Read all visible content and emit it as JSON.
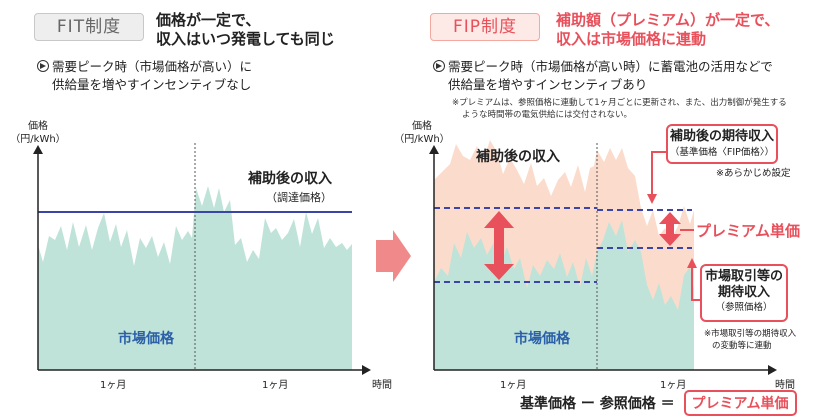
{
  "fit": {
    "tag": "FIT制度",
    "headline_1": "価格が一定で、",
    "headline_2": "収入はいつ発電しても同じ",
    "bullet_1": "需要ピーク時（市場価格が高い）に",
    "bullet_2": "供給量を増やすインセンティブなし",
    "y_axis_1": "価格",
    "y_axis_2": "（円/kWh）",
    "curve_label": "補助後の収入",
    "curve_sublabel": "（調達価格）",
    "market_label": "市場価格",
    "x_tick_1": "1ヶ月",
    "x_tick_2": "1ヶ月",
    "x_axis": "時間"
  },
  "fip": {
    "tag": "FIP制度",
    "headline_1": "補助額（プレミアム）が一定で、",
    "headline_2": "収入は市場価格に連動",
    "bullet_1": "需要ピーク時（市場価格が高い時）に蓄電池の活用などで",
    "bullet_2": "供給量を増やすインセンティブあり",
    "note_1": "※プレミアムは、参照価格に連動して1ヶ月ごとに更新され、また、出力制御が発生する",
    "note_2": "ような時間帯の電気供給には交付されない。",
    "y_axis_1": "価格",
    "y_axis_2": "（円/kWh）",
    "curve_label": "補助後の収入",
    "expected_title": "補助後の期待収入",
    "expected_sub": "（基準価格〈FIP価格〉）",
    "preset_note": "※あらかじめ設定",
    "premium_label": "プレミアム単価",
    "market_expected_1": "市場取引等の",
    "market_expected_2": "期待収入",
    "market_expected_sub": "（参照価格）",
    "market_note_1": "※市場取引等の期待収入",
    "market_note_2": "の変動等に連動",
    "market_label": "市場価格",
    "x_tick_1": "1ヶ月",
    "x_tick_2": "1ヶ月",
    "x_axis": "時間"
  },
  "formula": {
    "base": "基準価格",
    "minus": "ー",
    "reference": "参照価格",
    "equals": "＝",
    "result": "プレミアム単価"
  },
  "colors": {
    "market_fill": "#bfe3d8",
    "premium_fill": "#fbdccc",
    "line_blue": "#3b44a8",
    "accent_red": "#e8505b",
    "arrow_pink": "#f08a8a"
  }
}
